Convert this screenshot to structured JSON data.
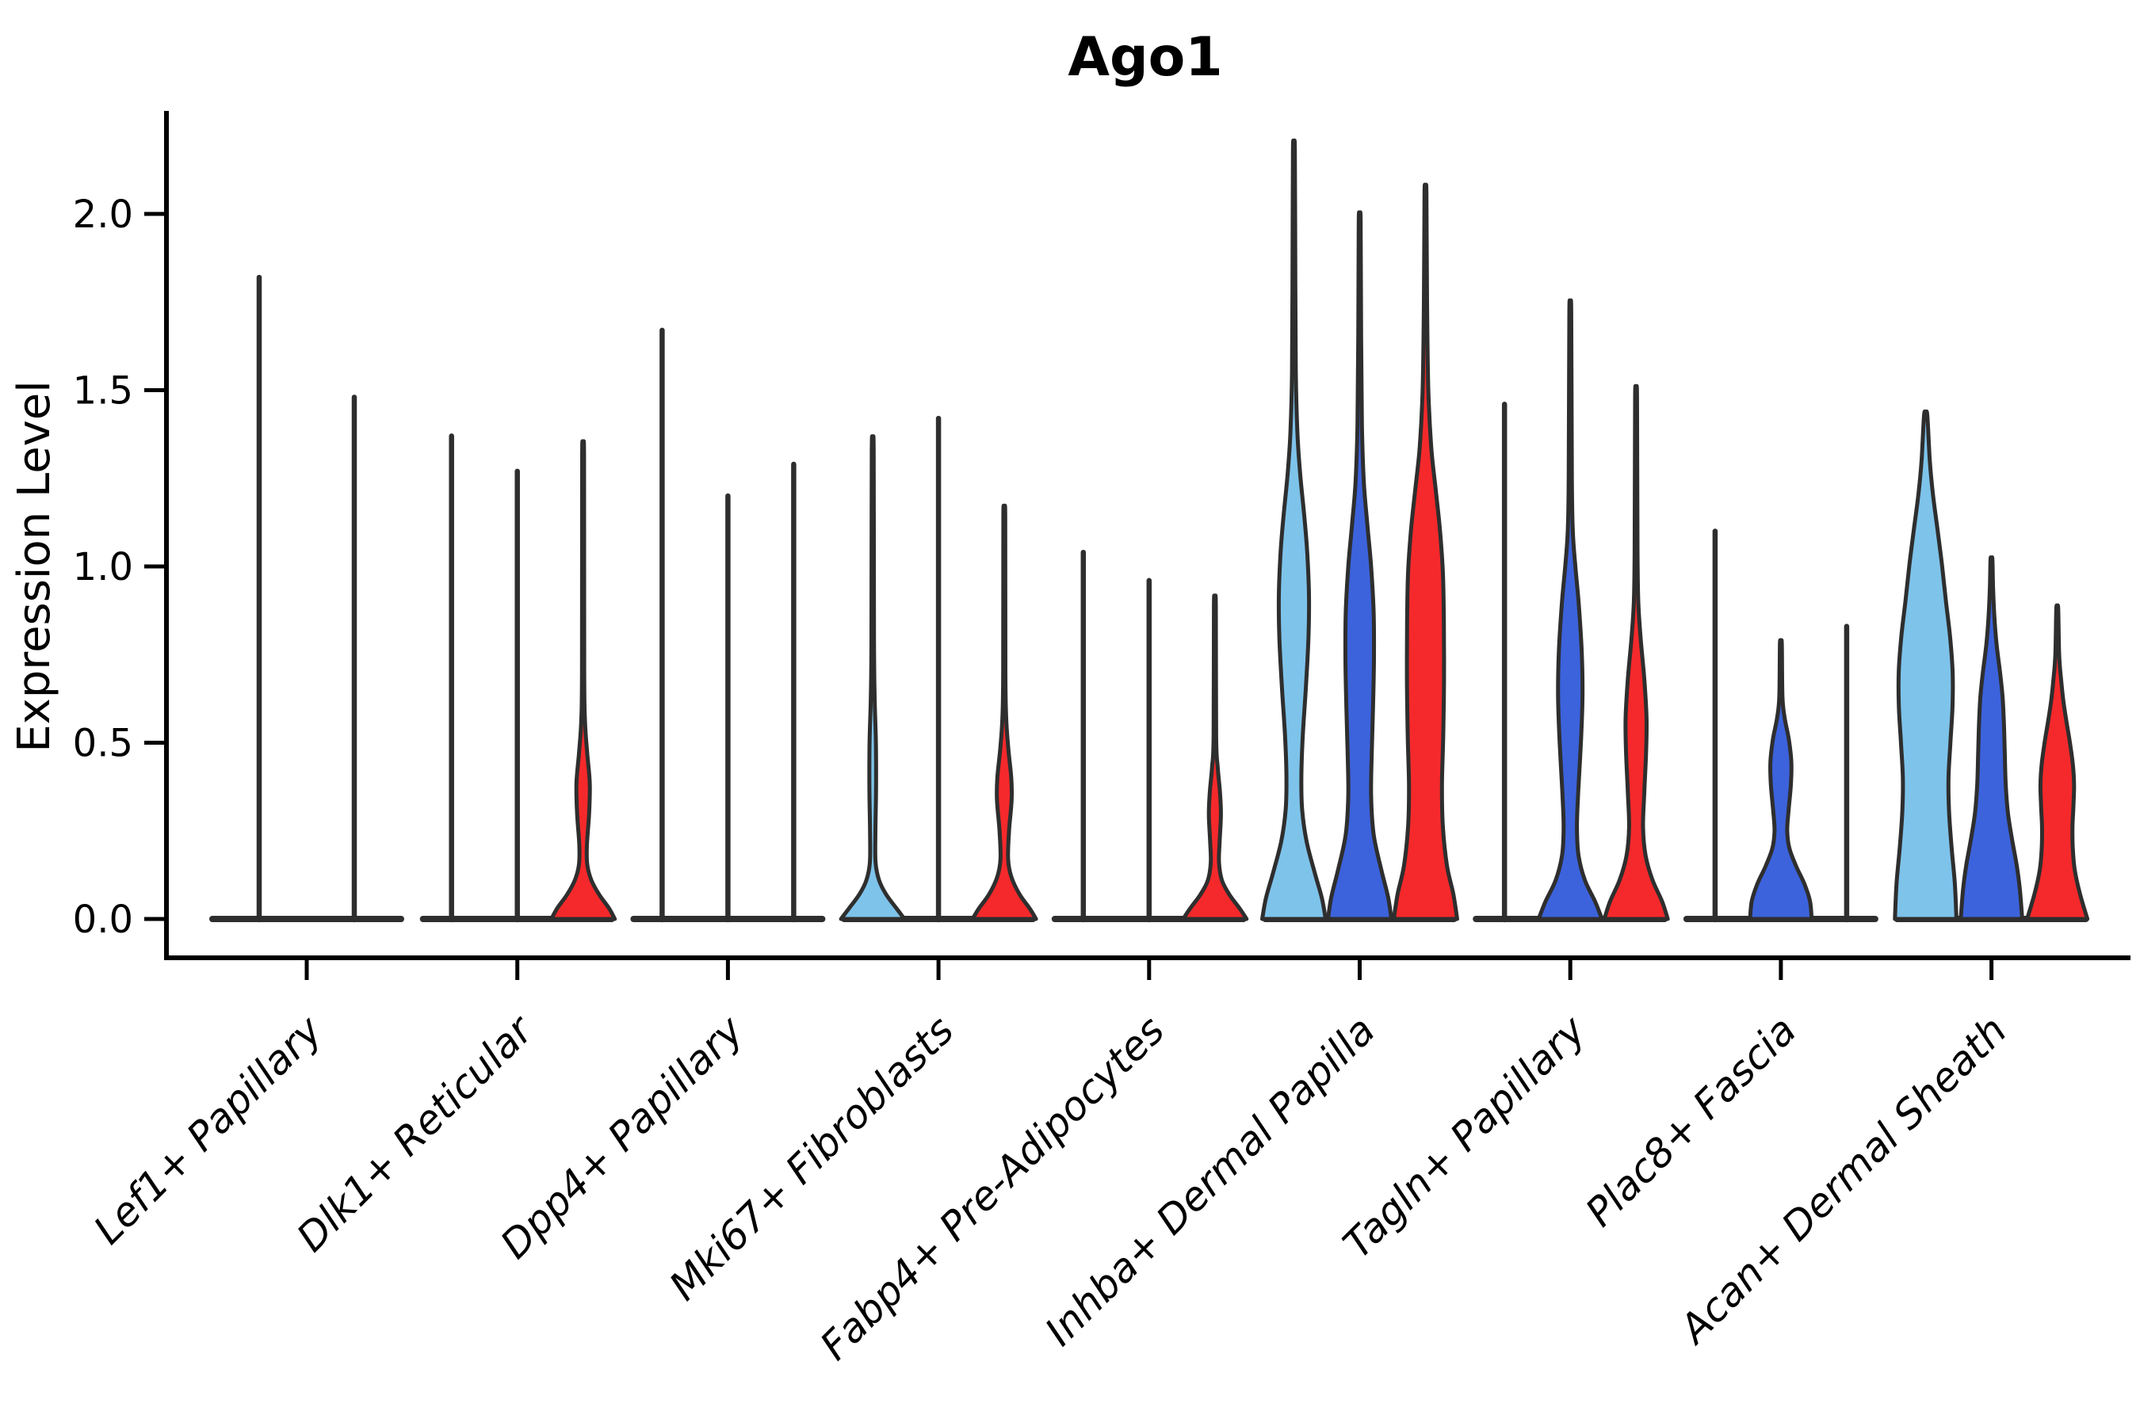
{
  "chart_data": {
    "type": "violin",
    "title": "Ago1",
    "ylabel": "Expression Level",
    "xlabel": "",
    "grid": false,
    "legend": "none",
    "ylim": [
      0.0,
      2.35
    ],
    "yticks": [
      0.0,
      0.5,
      1.0,
      1.5,
      2.0
    ],
    "ytick_labels": [
      "0.0",
      "0.5",
      "1.0",
      "1.5",
      "2.0"
    ],
    "categories": [
      "Lef1+ Papillary",
      "Dlk1+ Reticular",
      "Dpp4+ Papillary",
      "Mki67+ Fibroblasts",
      "Fabp4+ Pre-Adipocytes",
      "Inhba+ Dermal Papilla",
      "Tagln+ Papillary",
      "Plac8+ Fascia",
      "Acan+ Dermal Sheath"
    ],
    "palette": {
      "lightblue": "#7EC3EA",
      "blue": "#3C63DC",
      "red": "#F5292B"
    },
    "outline_color": "#2E2E2E",
    "axis_color": "#000000",
    "groups": [
      {
        "category": "Lef1+ Papillary",
        "violins": [
          {
            "color": "lightblue",
            "kind": "spike",
            "max": 1.82,
            "offset": -60,
            "hw": 58
          },
          {
            "color": "blue",
            "kind": "spike",
            "max": 1.48,
            "offset": 60,
            "hw": 58
          }
        ]
      },
      {
        "category": "Dlk1+ Reticular",
        "violins": [
          {
            "color": "lightblue",
            "kind": "spike",
            "max": 1.37,
            "offset": -83,
            "hw": 40
          },
          {
            "color": "blue",
            "kind": "spike",
            "max": 1.27,
            "offset": 0,
            "hw": 40
          },
          {
            "color": "red",
            "kind": "body",
            "max": 1.31,
            "offset": 83,
            "hw": 40,
            "profile": [
              [
                0,
                1
              ],
              [
                0.03,
                0.82
              ],
              [
                0.07,
                0.5
              ],
              [
                0.11,
                0.26
              ],
              [
                0.155,
                0.13
              ],
              [
                0.21,
                0.12
              ],
              [
                0.3,
                0.19
              ],
              [
                0.385,
                0.21
              ],
              [
                0.47,
                0.13
              ],
              [
                0.56,
                0.06
              ],
              [
                0.7,
                0.035
              ],
              [
                1.31,
                0.03
              ]
            ]
          }
        ]
      },
      {
        "category": "Dpp4+ Papillary",
        "violins": [
          {
            "color": "lightblue",
            "kind": "spike",
            "max": 1.67,
            "offset": -83,
            "hw": 40
          },
          {
            "color": "blue",
            "kind": "spike",
            "max": 1.2,
            "offset": 0,
            "hw": 40
          },
          {
            "color": "red",
            "kind": "spike",
            "max": 1.29,
            "offset": 83,
            "hw": 40
          }
        ]
      },
      {
        "category": "Mki67+ Fibroblasts",
        "violins": [
          {
            "color": "lightblue",
            "kind": "body",
            "max": 1.33,
            "offset": -83,
            "hw": 40,
            "profile": [
              [
                0,
                1
              ],
              [
                0.03,
                0.75
              ],
              [
                0.07,
                0.42
              ],
              [
                0.11,
                0.2
              ],
              [
                0.16,
                0.09
              ],
              [
                0.25,
                0.085
              ],
              [
                0.37,
                0.105
              ],
              [
                0.5,
                0.1
              ],
              [
                0.63,
                0.06
              ],
              [
                0.8,
                0.04
              ],
              [
                1.33,
                0.03
              ]
            ]
          },
          {
            "color": "blue",
            "kind": "spike",
            "max": 1.42,
            "offset": 0,
            "hw": 40
          },
          {
            "color": "red",
            "kind": "body",
            "max": 1.14,
            "offset": 83,
            "hw": 40,
            "profile": [
              [
                0,
                1
              ],
              [
                0.03,
                0.8
              ],
              [
                0.07,
                0.48
              ],
              [
                0.12,
                0.22
              ],
              [
                0.17,
                0.12
              ],
              [
                0.25,
                0.15
              ],
              [
                0.335,
                0.23
              ],
              [
                0.4,
                0.22
              ],
              [
                0.48,
                0.13
              ],
              [
                0.57,
                0.06
              ],
              [
                0.7,
                0.035
              ],
              [
                1.14,
                0.03
              ]
            ]
          }
        ]
      },
      {
        "category": "Fabp4+ Pre-Adipocytes",
        "violins": [
          {
            "color": "lightblue",
            "kind": "spike",
            "max": 1.04,
            "offset": -83,
            "hw": 40
          },
          {
            "color": "blue",
            "kind": "spike",
            "max": 0.96,
            "offset": 0,
            "hw": 40
          },
          {
            "color": "red",
            "kind": "body",
            "max": 0.89,
            "offset": 83,
            "hw": 40,
            "profile": [
              [
                0,
                1
              ],
              [
                0.03,
                0.78
              ],
              [
                0.07,
                0.45
              ],
              [
                0.11,
                0.22
              ],
              [
                0.16,
                0.13
              ],
              [
                0.22,
                0.15
              ],
              [
                0.295,
                0.19
              ],
              [
                0.36,
                0.16
              ],
              [
                0.43,
                0.09
              ],
              [
                0.52,
                0.04
              ],
              [
                0.89,
                0.03
              ]
            ]
          }
        ]
      },
      {
        "category": "Inhba+ Dermal Papilla",
        "violins": [
          {
            "color": "lightblue",
            "kind": "body",
            "max": 2.18,
            "offset": -83,
            "hw": 40,
            "profile": [
              [
                0,
                1
              ],
              [
                0.06,
                0.88
              ],
              [
                0.13,
                0.66
              ],
              [
                0.22,
                0.4
              ],
              [
                0.31,
                0.26
              ],
              [
                0.4,
                0.235
              ],
              [
                0.52,
                0.28
              ],
              [
                0.66,
                0.38
              ],
              [
                0.8,
                0.46
              ],
              [
                0.92,
                0.475
              ],
              [
                1.04,
                0.42
              ],
              [
                1.15,
                0.32
              ],
              [
                1.26,
                0.2
              ],
              [
                1.38,
                0.11
              ],
              [
                1.55,
                0.06
              ],
              [
                1.8,
                0.045
              ],
              [
                2.18,
                0.03
              ]
            ]
          },
          {
            "color": "blue",
            "kind": "body",
            "max": 1.98,
            "offset": 0,
            "hw": 40,
            "profile": [
              [
                0,
                1
              ],
              [
                0.06,
                0.9
              ],
              [
                0.14,
                0.68
              ],
              [
                0.24,
                0.44
              ],
              [
                0.35,
                0.36
              ],
              [
                0.47,
                0.38
              ],
              [
                0.6,
                0.42
              ],
              [
                0.74,
                0.45
              ],
              [
                0.87,
                0.44
              ],
              [
                1.0,
                0.36
              ],
              [
                1.12,
                0.24
              ],
              [
                1.24,
                0.13
              ],
              [
                1.4,
                0.07
              ],
              [
                1.65,
                0.045
              ],
              [
                1.98,
                0.03
              ]
            ]
          },
          {
            "color": "red",
            "kind": "body",
            "max": 2.06,
            "offset": 83,
            "hw": 40,
            "profile": [
              [
                0,
                1
              ],
              [
                0.07,
                0.88
              ],
              [
                0.15,
                0.68
              ],
              [
                0.26,
                0.55
              ],
              [
                0.38,
                0.52
              ],
              [
                0.52,
                0.56
              ],
              [
                0.68,
                0.585
              ],
              [
                0.84,
                0.58
              ],
              [
                0.98,
                0.55
              ],
              [
                1.1,
                0.46
              ],
              [
                1.22,
                0.32
              ],
              [
                1.34,
                0.18
              ],
              [
                1.5,
                0.09
              ],
              [
                1.75,
                0.05
              ],
              [
                2.06,
                0.03
              ]
            ]
          }
        ]
      },
      {
        "category": "Tagln+ Papillary",
        "violins": [
          {
            "color": "lightblue",
            "kind": "spike",
            "max": 1.46,
            "offset": -83,
            "hw": 40
          },
          {
            "color": "blue",
            "kind": "body",
            "max": 1.72,
            "offset": 0,
            "hw": 40,
            "profile": [
              [
                0,
                1
              ],
              [
                0.05,
                0.78
              ],
              [
                0.11,
                0.46
              ],
              [
                0.18,
                0.26
              ],
              [
                0.26,
                0.21
              ],
              [
                0.36,
                0.25
              ],
              [
                0.5,
                0.335
              ],
              [
                0.63,
                0.385
              ],
              [
                0.76,
                0.36
              ],
              [
                0.89,
                0.27
              ],
              [
                1.0,
                0.16
              ],
              [
                1.1,
                0.08
              ],
              [
                1.25,
                0.05
              ],
              [
                1.72,
                0.03
              ]
            ]
          },
          {
            "color": "red",
            "kind": "body",
            "max": 1.48,
            "offset": 83,
            "hw": 40,
            "profile": [
              [
                0,
                1
              ],
              [
                0.05,
                0.82
              ],
              [
                0.11,
                0.52
              ],
              [
                0.18,
                0.3
              ],
              [
                0.26,
                0.22
              ],
              [
                0.36,
                0.26
              ],
              [
                0.47,
                0.315
              ],
              [
                0.57,
                0.33
              ],
              [
                0.68,
                0.26
              ],
              [
                0.79,
                0.15
              ],
              [
                0.9,
                0.07
              ],
              [
                1.05,
                0.045
              ],
              [
                1.48,
                0.03
              ]
            ]
          }
        ]
      },
      {
        "category": "Plac8+ Fascia",
        "violins": [
          {
            "color": "lightblue",
            "kind": "spike",
            "max": 1.1,
            "offset": -83,
            "hw": 40
          },
          {
            "color": "blue",
            "kind": "body",
            "max": 0.78,
            "offset": 0,
            "hw": 40,
            "profile": [
              [
                0,
                0.97
              ],
              [
                0.05,
                0.92
              ],
              [
                0.1,
                0.74
              ],
              [
                0.15,
                0.48
              ],
              [
                0.2,
                0.27
              ],
              [
                0.25,
                0.2
              ],
              [
                0.31,
                0.245
              ],
              [
                0.38,
                0.315
              ],
              [
                0.445,
                0.33
              ],
              [
                0.51,
                0.25
              ],
              [
                0.57,
                0.12
              ],
              [
                0.63,
                0.05
              ],
              [
                0.78,
                0.03
              ]
            ]
          },
          {
            "color": "red",
            "kind": "spike",
            "max": 0.83,
            "offset": 83,
            "hw": 40
          }
        ]
      },
      {
        "category": "Acan+ Dermal Sheath",
        "violins": [
          {
            "color": "lightblue",
            "kind": "body",
            "max": 1.43,
            "offset": -83,
            "hw": 40,
            "profile": [
              [
                0,
                0.97
              ],
              [
                0.1,
                0.92
              ],
              [
                0.2,
                0.82
              ],
              [
                0.3,
                0.74
              ],
              [
                0.4,
                0.72
              ],
              [
                0.5,
                0.78
              ],
              [
                0.6,
                0.845
              ],
              [
                0.7,
                0.85
              ],
              [
                0.8,
                0.77
              ],
              [
                0.9,
                0.64
              ],
              [
                1.0,
                0.52
              ],
              [
                1.1,
                0.38
              ],
              [
                1.2,
                0.235
              ],
              [
                1.3,
                0.13
              ],
              [
                1.43,
                0.05
              ]
            ]
          },
          {
            "color": "blue",
            "kind": "body",
            "max": 1.02,
            "offset": 0,
            "hw": 40,
            "profile": [
              [
                0,
                0.97
              ],
              [
                0.08,
                0.9
              ],
              [
                0.15,
                0.8
              ],
              [
                0.22,
                0.66
              ],
              [
                0.3,
                0.52
              ],
              [
                0.38,
                0.45
              ],
              [
                0.47,
                0.42
              ],
              [
                0.56,
                0.39
              ],
              [
                0.63,
                0.35
              ],
              [
                0.7,
                0.27
              ],
              [
                0.78,
                0.16
              ],
              [
                0.86,
                0.09
              ],
              [
                0.94,
                0.05
              ],
              [
                1.02,
                0.03
              ]
            ]
          },
          {
            "color": "red",
            "kind": "body",
            "max": 0.88,
            "offset": 83,
            "hw": 40,
            "profile": [
              [
                0,
                0.95
              ],
              [
                0.07,
                0.72
              ],
              [
                0.14,
                0.55
              ],
              [
                0.2,
                0.49
              ],
              [
                0.26,
                0.48
              ],
              [
                0.32,
                0.51
              ],
              [
                0.38,
                0.53
              ],
              [
                0.44,
                0.49
              ],
              [
                0.5,
                0.4
              ],
              [
                0.56,
                0.29
              ],
              [
                0.62,
                0.19
              ],
              [
                0.68,
                0.12
              ],
              [
                0.75,
                0.06
              ],
              [
                0.88,
                0.03
              ]
            ]
          }
        ]
      }
    ]
  }
}
